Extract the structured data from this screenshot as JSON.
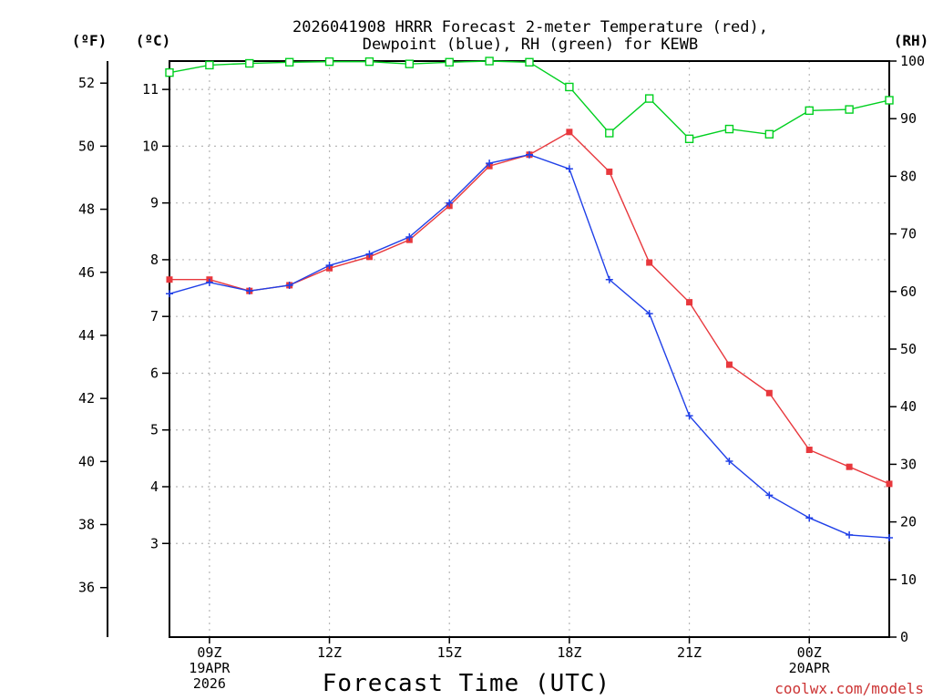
{
  "chart_data": {
    "type": "line",
    "title_line1": "2026041908 HRRR Forecast 2-meter Temperature (red),",
    "title_line2": "Dewpoint (blue), RH (green) for KEWB",
    "xlabel": "Forecast Time (UTC)",
    "left_axis_f_label": "(ºF)",
    "left_axis_c_label": "(ºC)",
    "right_axis_label": "(RH)",
    "credit": "coolwx.com/models",
    "x_hours": [
      8,
      9,
      10,
      11,
      12,
      13,
      14,
      15,
      16,
      17,
      18,
      19,
      20,
      21,
      22,
      23,
      24,
      25,
      26
    ],
    "x_ticks": [
      {
        "hour": 9,
        "lines": [
          "09Z",
          "19APR",
          "2026"
        ]
      },
      {
        "hour": 12,
        "lines": [
          "12Z"
        ]
      },
      {
        "hour": 15,
        "lines": [
          "15Z"
        ]
      },
      {
        "hour": 18,
        "lines": [
          "18Z"
        ]
      },
      {
        "hour": 21,
        "lines": [
          "21Z"
        ]
      },
      {
        "hour": 24,
        "lines": [
          "00Z",
          "20APR"
        ]
      }
    ],
    "xlim": [
      8,
      26
    ],
    "celsius_ticks": [
      3,
      4,
      5,
      6,
      7,
      8,
      9,
      10,
      11
    ],
    "celsius_lim": [
      1.35,
      11.5
    ],
    "fahrenheit_ticks": [
      36,
      38,
      40,
      42,
      44,
      46,
      48,
      50,
      52
    ],
    "rh_ticks": [
      0,
      10,
      20,
      30,
      40,
      50,
      60,
      70,
      80,
      90,
      100
    ],
    "rh_lim": [
      0,
      100
    ],
    "series": [
      {
        "name": "Temperature",
        "color": "#e8383d",
        "marker": "square",
        "values": [
          7.65,
          7.65,
          7.45,
          7.55,
          7.85,
          8.05,
          8.35,
          8.95,
          9.65,
          9.85,
          10.25,
          9.55,
          7.95,
          7.25,
          6.15,
          5.65,
          4.65,
          4.35,
          4.05
        ]
      },
      {
        "name": "Dewpoint",
        "color": "#2040e8",
        "marker": "plus",
        "values": [
          7.4,
          7.6,
          7.45,
          7.55,
          7.9,
          8.1,
          8.4,
          9.0,
          9.7,
          9.85,
          9.6,
          7.65,
          7.05,
          5.25,
          4.45,
          3.85,
          3.45,
          3.15,
          3.1
        ]
      },
      {
        "name": "RH",
        "color": "#00d020",
        "marker": "open-square",
        "axis": "right",
        "values": [
          98,
          99.3,
          99.6,
          99.8,
          99.9,
          99.9,
          99.5,
          99.8,
          100,
          99.8,
          95.5,
          87.5,
          93.5,
          86.5,
          88.2,
          87.3,
          91.4,
          91.6,
          93.2
        ]
      }
    ]
  }
}
